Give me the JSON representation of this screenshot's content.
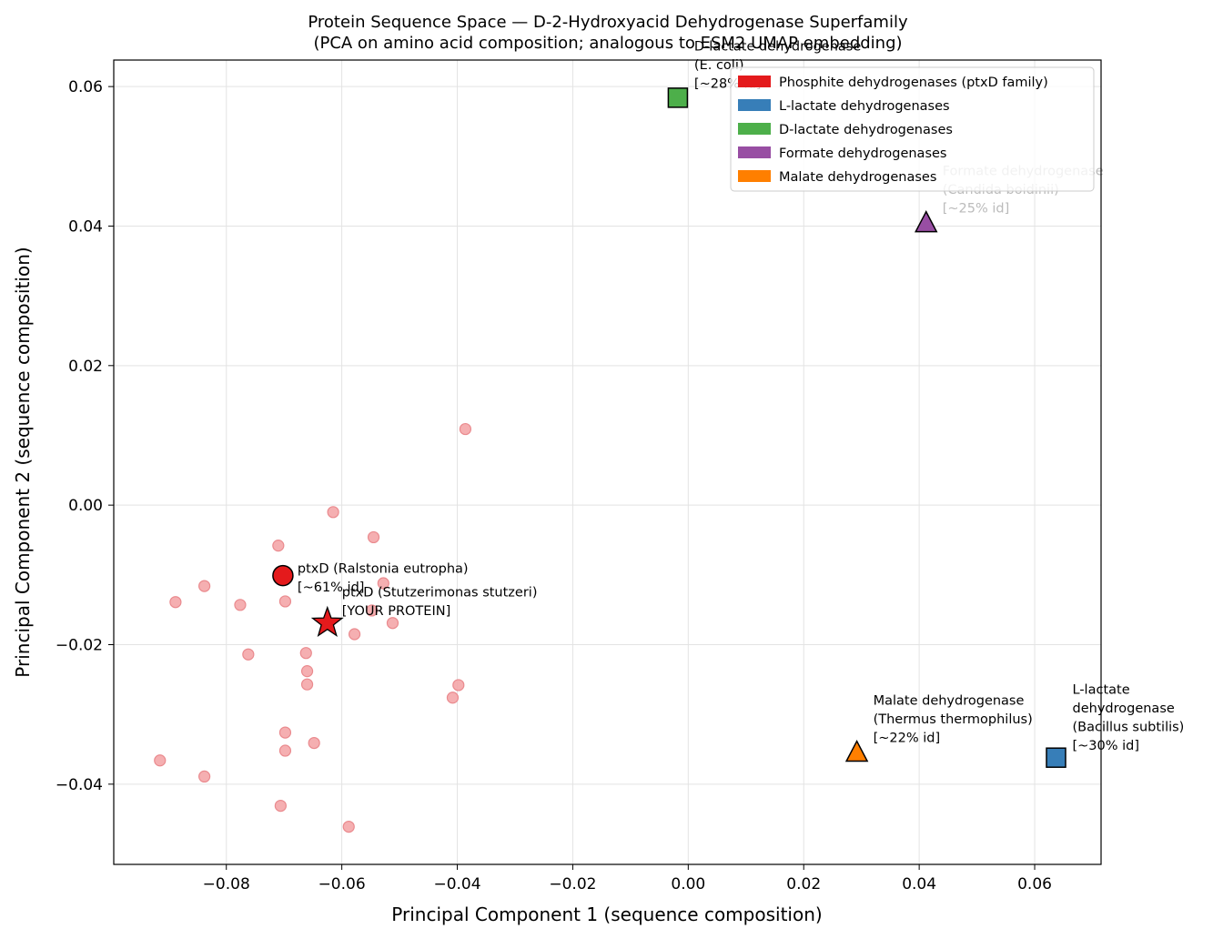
{
  "chart_data": {
    "type": "scatter",
    "title": "Protein Sequence Space — D-2-Hydroxyacid Dehydrogenase Superfamily",
    "subtitle": "(PCA on amino acid composition; analogous to ESM2 UMAP embedding)",
    "xlabel": "Principal Component 1 (sequence composition)",
    "ylabel": "Principal Component 2 (sequence composition)",
    "xlim": [
      -0.0995,
      0.0715
    ],
    "ylim": [
      -0.0515,
      0.0638
    ],
    "xticks": [
      -0.08,
      -0.06,
      -0.04,
      -0.02,
      0.0,
      0.02,
      0.04,
      0.06
    ],
    "xtick_labels": [
      "−0.08",
      "−0.06",
      "−0.04",
      "−0.02",
      "0.00",
      "0.02",
      "0.04",
      "0.06"
    ],
    "yticks": [
      -0.04,
      -0.02,
      0.0,
      0.02,
      0.04,
      0.06
    ],
    "ytick_labels": [
      "−0.04",
      "−0.02",
      "0.00",
      "0.02",
      "0.04",
      "0.06"
    ],
    "grid": true,
    "legend_placement": "top-right",
    "legend": [
      {
        "label": "Phosphite dehydrogenases (ptxD family)",
        "color": "#e41a1c"
      },
      {
        "label": "L-lactate dehydrogenases",
        "color": "#377eb8"
      },
      {
        "label": "D-lactate dehydrogenases",
        "color": "#4daf4a"
      },
      {
        "label": "Formate dehydrogenases",
        "color": "#984ea3"
      },
      {
        "label": "Malate dehydrogenases",
        "color": "#ff7f00"
      }
    ],
    "background_points": {
      "color": "#f4a6a8",
      "x": [
        -0.0386,
        -0.0615,
        -0.0545,
        -0.071,
        -0.0698,
        -0.0838,
        -0.0888,
        -0.0776,
        -0.0528,
        -0.0548,
        -0.0512,
        -0.0578,
        -0.0762,
        -0.0662,
        -0.066,
        -0.066,
        -0.0398,
        -0.0408,
        -0.0698,
        -0.0648,
        -0.0698,
        -0.0915,
        -0.0838,
        -0.0706,
        -0.0588
      ],
      "y": [
        0.0109,
        -0.001,
        -0.0046,
        -0.0058,
        -0.0138,
        -0.0116,
        -0.0139,
        -0.0143,
        -0.0112,
        -0.0151,
        -0.0169,
        -0.0185,
        -0.0214,
        -0.0212,
        -0.0238,
        -0.0257,
        -0.0258,
        -0.0276,
        -0.0326,
        -0.0341,
        -0.0352,
        -0.0366,
        -0.0389,
        -0.0431,
        -0.0461
      ]
    },
    "highlight_points": [
      {
        "marker": "circle",
        "color": "#e41a1c",
        "x": -0.0702,
        "y": -0.0101,
        "label_lines": [
          "ptxD (Ralstonia eutropha)",
          "[~61% id]"
        ]
      },
      {
        "marker": "star",
        "color": "#e41a1c",
        "x": -0.0625,
        "y": -0.0169,
        "label_lines": [
          "ptxD (Stutzerimonas stutzeri)",
          "[YOUR PROTEIN]"
        ]
      },
      {
        "marker": "square",
        "color": "#4daf4a",
        "x": -0.0018,
        "y": 0.0584,
        "label_lines": [
          "D-lactate dehydrogenase",
          "(E. coli)",
          "[~28% id]"
        ]
      },
      {
        "marker": "triangle",
        "color": "#984ea3",
        "x": 0.0412,
        "y": 0.0405,
        "label_lines": [
          "Formate dehydrogenase",
          "(Candida boidinii)",
          "[~25% id]"
        ]
      },
      {
        "marker": "triangle",
        "color": "#ff7f00",
        "x": 0.0292,
        "y": -0.0354,
        "label_lines": [
          "Malate dehydrogenase",
          "(Thermus thermophilus)",
          "[~22% id]"
        ]
      },
      {
        "marker": "square",
        "color": "#377eb8",
        "x": 0.0637,
        "y": -0.0362,
        "label_lines": [
          "L-lactate",
          "dehydrogenase",
          "(Bacillus subtilis)",
          "[~30% id]"
        ]
      }
    ]
  }
}
